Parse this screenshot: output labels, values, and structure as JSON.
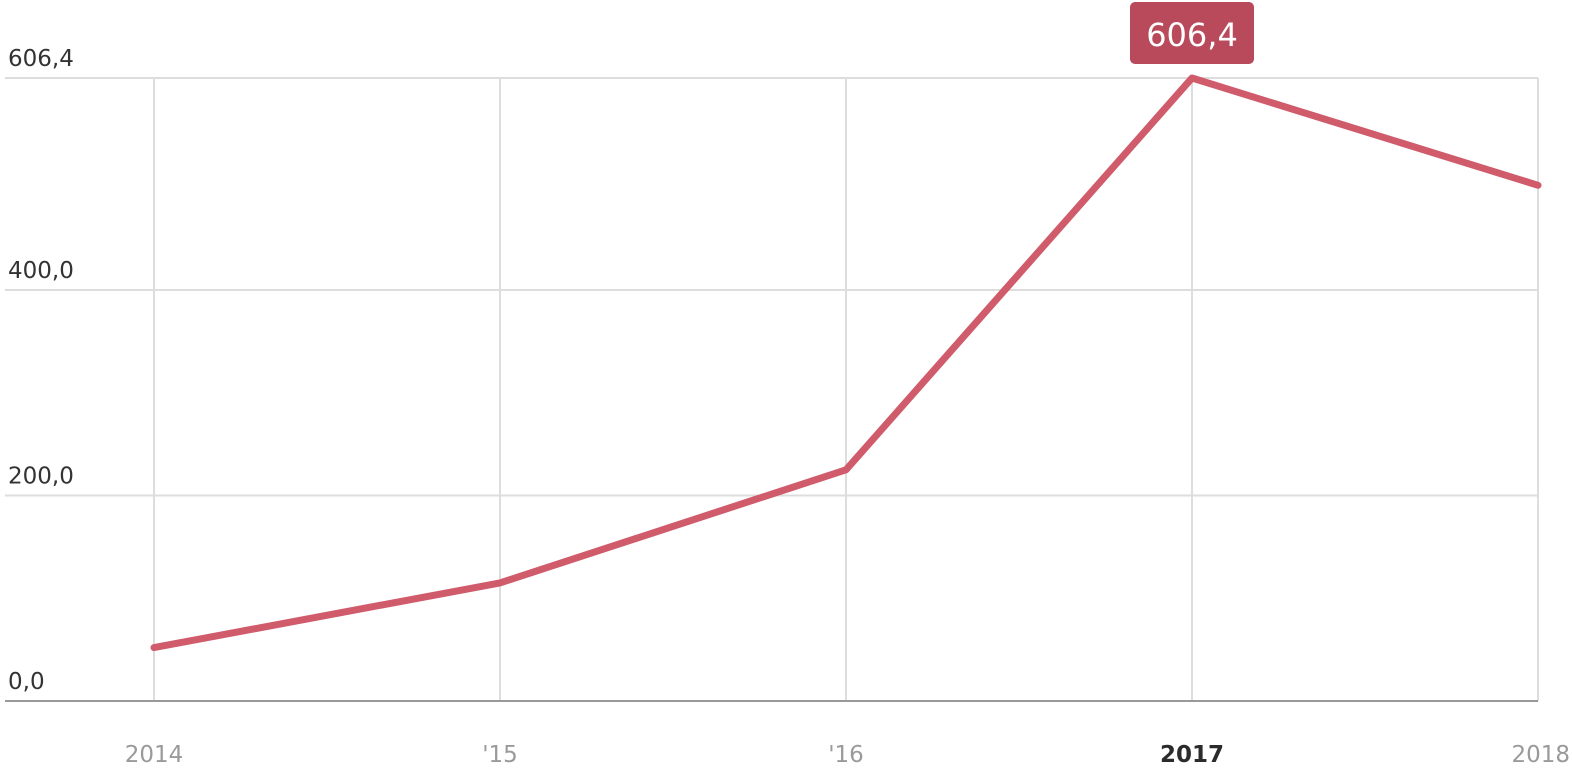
{
  "chart_data": {
    "type": "line",
    "x_labels": [
      "2014",
      "'15",
      "'16",
      "2017",
      "2018"
    ],
    "series": [
      {
        "values": [
          52,
          115,
          225,
          606.4,
          502
        ]
      }
    ],
    "ylim": [
      0,
      606.4
    ],
    "y_ticks": [
      {
        "value": 0,
        "label": "0,0"
      },
      {
        "value": 200,
        "label": "200,0"
      },
      {
        "value": 400,
        "label": "400,0"
      },
      {
        "value": 606.4,
        "label": "606,4"
      }
    ],
    "grid": true,
    "highlight": {
      "index": 3,
      "label": "606,4"
    },
    "colors": {
      "line": "#d05b6b",
      "tooltip": "#b84a5c",
      "grid": "#dddddd",
      "axis": "#999999"
    }
  }
}
